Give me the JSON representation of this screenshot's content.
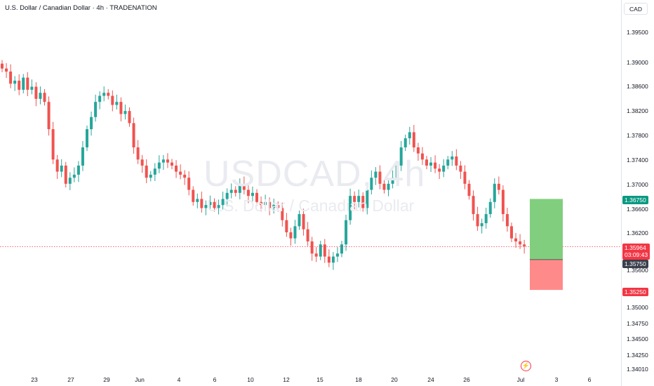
{
  "header": {
    "symbol_title": "U.S. Dollar / Canadian Dollar · 4h · TRADENATION",
    "currency": "CAD"
  },
  "watermark": {
    "symbol": "USDCAD, 4h",
    "name": "U.S. Dollar / Canadian Dollar"
  },
  "price_tags": {
    "target": "1.36750",
    "current": "1.35964",
    "countdown": "03:09:43",
    "entry": "1.35750",
    "stop": "1.35250"
  },
  "colors": {
    "up": "#26a69a",
    "down": "#ef5350",
    "profit_zone": "#81cf7e",
    "loss_zone": "#ff8a8a",
    "current_line": "#f23645"
  },
  "icons": {
    "alert": "lightning-icon"
  },
  "chart_data": {
    "type": "candlestick",
    "y_ticks": [
      "1.39500",
      "1.39000",
      "1.38600",
      "1.38200",
      "1.37800",
      "1.37400",
      "1.37000",
      "1.36600",
      "1.36200",
      "1.35600",
      "1.35000",
      "1.34750",
      "1.34500",
      "1.34250",
      "1.34010"
    ],
    "x_ticks": [
      "23",
      "27",
      "29",
      "Jun",
      "4",
      "6",
      "10",
      "12",
      "15",
      "18",
      "20",
      "24",
      "26",
      "Jul",
      "3",
      "6"
    ],
    "close_path": [
      1.389,
      1.3885,
      1.3865,
      1.387,
      1.3855,
      1.3875,
      1.3855,
      1.386,
      1.384,
      1.385,
      1.3835,
      1.379,
      1.374,
      1.372,
      1.373,
      1.37,
      1.371,
      1.3715,
      1.373,
      1.376,
      1.379,
      1.381,
      1.3835,
      1.3845,
      1.385,
      1.3845,
      1.383,
      1.3835,
      1.3815,
      1.382,
      1.38,
      1.376,
      1.374,
      1.373,
      1.371,
      1.3715,
      1.3725,
      1.3735,
      1.374,
      1.3735,
      1.373,
      1.372,
      1.3715,
      1.371,
      1.369,
      1.367,
      1.3675,
      1.366,
      1.3665,
      1.367,
      1.366,
      1.3665,
      1.3675,
      1.3685,
      1.369,
      1.3685,
      1.37,
      1.369,
      1.368,
      1.3685,
      1.367,
      1.3665,
      1.367,
      1.366,
      1.3665,
      1.366,
      1.364,
      1.362,
      1.361,
      1.363,
      1.365,
      1.3625,
      1.3605,
      1.3585,
      1.358,
      1.36,
      1.358,
      1.357,
      1.358,
      1.3585,
      1.36,
      1.364,
      1.368,
      1.367,
      1.368,
      1.366,
      1.369,
      1.371,
      1.372,
      1.37,
      1.369,
      1.37,
      1.371,
      1.373,
      1.376,
      1.3775,
      1.3785,
      1.376,
      1.375,
      1.374,
      1.373,
      1.3735,
      1.3725,
      1.372,
      1.373,
      1.374,
      1.3745,
      1.373,
      1.372,
      1.37,
      1.368,
      1.365,
      1.363,
      1.3635,
      1.365,
      1.367,
      1.37,
      1.369,
      1.365,
      1.363,
      1.361,
      1.3605,
      1.36,
      1.3597
    ],
    "projection": {
      "entry": 1.3575,
      "target": 1.3675,
      "stop": 1.3525,
      "current": 1.35964
    },
    "grid": false,
    "legend": "none"
  }
}
